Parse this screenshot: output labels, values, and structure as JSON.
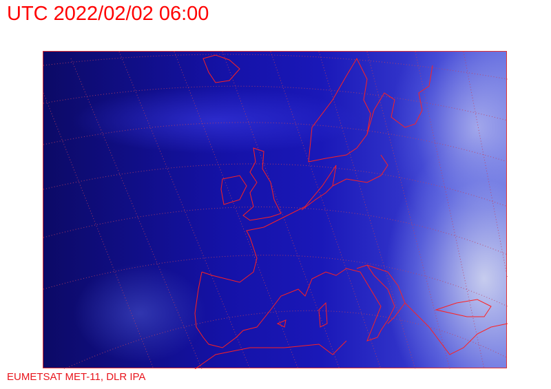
{
  "title": "UTC 2022/02/02 06:00",
  "credit": "EUMETSAT MET-11, DLR IPA",
  "colors": {
    "text": "#ff0000",
    "coastline": "#ff2020",
    "graticule": "#c04060"
  }
}
